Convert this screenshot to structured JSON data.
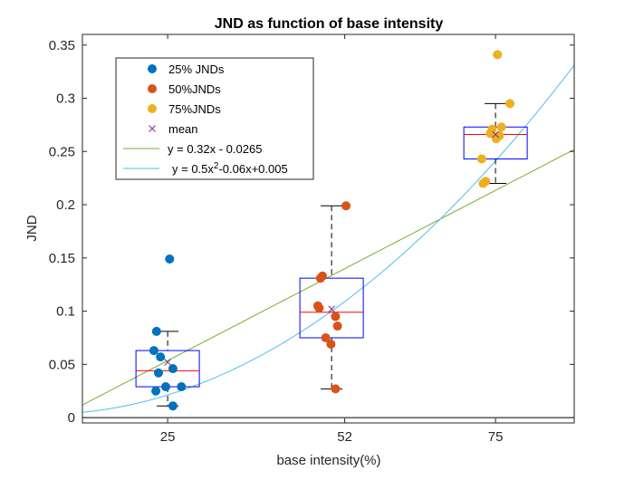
{
  "chart_data": {
    "type": "scatter",
    "title": "JND as function of base intensity",
    "xlabel": "base intensity(%)",
    "ylabel": "JND",
    "xlim": [
      12,
      87
    ],
    "ylim": [
      -0.005,
      0.36
    ],
    "x_ticks": [
      25,
      52,
      75
    ],
    "x_tick_labels": [
      "25",
      "52",
      "75"
    ],
    "y_ticks": [
      0,
      0.05,
      0.1,
      0.15,
      0.2,
      0.25,
      0.3,
      0.35
    ],
    "y_tick_labels": [
      "0",
      "0.05",
      "0.1",
      "0.15",
      "0.2",
      "0.25",
      "0.3",
      "0.35"
    ],
    "grid": false,
    "legend_position": "top-left",
    "series": [
      {
        "name": "25% JNDs",
        "color": "#0072BD",
        "points": [
          {
            "x": 25.3,
            "y": 0.149
          },
          {
            "x": 23.3,
            "y": 0.081
          },
          {
            "x": 22.9,
            "y": 0.063
          },
          {
            "x": 23.9,
            "y": 0.057
          },
          {
            "x": 25.8,
            "y": 0.046
          },
          {
            "x": 23.6,
            "y": 0.042
          },
          {
            "x": 24.7,
            "y": 0.029
          },
          {
            "x": 27.1,
            "y": 0.029
          },
          {
            "x": 23.2,
            "y": 0.025
          },
          {
            "x": 25.8,
            "y": 0.011
          }
        ]
      },
      {
        "name": "50%JNDs",
        "color": "#D95319",
        "points": [
          {
            "x": 52.2,
            "y": 0.199
          },
          {
            "x": 48.6,
            "y": 0.133
          },
          {
            "x": 48.3,
            "y": 0.131
          },
          {
            "x": 47.9,
            "y": 0.105
          },
          {
            "x": 48.1,
            "y": 0.103
          },
          {
            "x": 50.6,
            "y": 0.095
          },
          {
            "x": 50.9,
            "y": 0.086
          },
          {
            "x": 49.1,
            "y": 0.075
          },
          {
            "x": 49.9,
            "y": 0.069
          },
          {
            "x": 50.6,
            "y": 0.027
          }
        ]
      },
      {
        "name": "75%JNDs",
        "color": "#EDB120",
        "points": [
          {
            "x": 75.3,
            "y": 0.341
          },
          {
            "x": 77.2,
            "y": 0.295
          },
          {
            "x": 74.5,
            "y": 0.271
          },
          {
            "x": 75.9,
            "y": 0.273
          },
          {
            "x": 74.2,
            "y": 0.267
          },
          {
            "x": 75.6,
            "y": 0.265
          },
          {
            "x": 75.1,
            "y": 0.262
          },
          {
            "x": 72.9,
            "y": 0.243
          },
          {
            "x": 73.5,
            "y": 0.222
          },
          {
            "x": 73.1,
            "y": 0.22
          }
        ]
      }
    ],
    "means": {
      "name": "mean",
      "color": "#7E2F8E",
      "points": [
        {
          "x": 25,
          "y": 0.052
        },
        {
          "x": 50,
          "y": 0.102
        },
        {
          "x": 75,
          "y": 0.266
        }
      ]
    },
    "boxplots": [
      {
        "x": 25,
        "lower_whisker": 0.011,
        "q1": 0.029,
        "median": 0.044,
        "q3": 0.063,
        "upper_whisker": 0.081,
        "outliers": [
          0.149
        ]
      },
      {
        "x": 50,
        "lower_whisker": 0.027,
        "q1": 0.075,
        "median": 0.099,
        "q3": 0.131,
        "upper_whisker": 0.199,
        "outliers": []
      },
      {
        "x": 75,
        "lower_whisker": 0.22,
        "q1": 0.243,
        "median": 0.266,
        "q3": 0.273,
        "upper_whisker": 0.295,
        "outliers": [
          0.341
        ]
      }
    ],
    "box_color": "#0000FF",
    "median_color": "#FF0000",
    "fits": [
      {
        "label_parts": [
          "y = 0.32x - 0.0265"
        ],
        "kind": "linear",
        "coefficients": [
          0.32,
          -0.0265
        ],
        "color": "#77AC30"
      },
      {
        "label_parts": [
          "y = 0.5x",
          "2",
          "-0.06x+0.005"
        ],
        "kind": "quadratic",
        "coefficients": [
          0.5,
          -0.06,
          0.005
        ],
        "color": "#4DBEEE"
      }
    ]
  }
}
